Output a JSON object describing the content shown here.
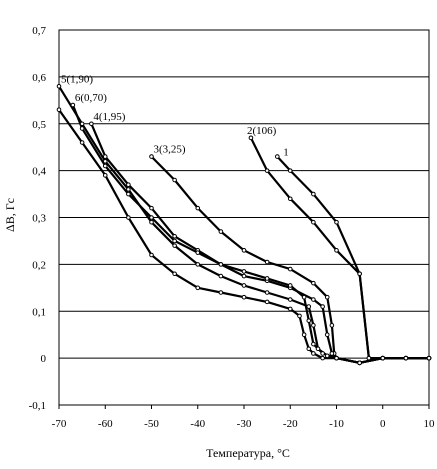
{
  "chart_data": {
    "type": "line",
    "title": "",
    "xlabel": "Температура, °C",
    "ylabel": "ΔB, Гс",
    "xlim": [
      -70,
      10
    ],
    "ylim": [
      -0.1,
      0.7
    ],
    "x_ticks": [
      "-70",
      "-60",
      "-50",
      "-40",
      "-30",
      "-20",
      "-10",
      "0",
      "10"
    ],
    "y_ticks": [
      "-0,1",
      "0",
      "0,1",
      "0,2",
      "0,3",
      "0,4",
      "0,5",
      "0,6",
      "0,7"
    ],
    "grid": "horizontal",
    "series": [
      {
        "name": "1",
        "x": [
          -22.8,
          -20,
          -15,
          -10,
          -5,
          -3,
          0,
          5,
          10
        ],
        "y": [
          0.43,
          0.4,
          0.35,
          0.29,
          0.18,
          0.0,
          0.0,
          0.0,
          0.0
        ]
      },
      {
        "name": "2(106)",
        "x": [
          -28.5,
          -25,
          -20,
          -15,
          -10,
          -5,
          -3,
          0,
          5,
          10
        ],
        "y": [
          0.47,
          0.4,
          0.34,
          0.29,
          0.23,
          0.18,
          0.0,
          0.0,
          0.0,
          0.0
        ]
      },
      {
        "name": "3(3,25)",
        "x": [
          -50,
          -45,
          -40,
          -35,
          -30,
          -25,
          -20,
          -15,
          -12,
          -11,
          -10.5,
          -10,
          -5,
          0,
          5,
          10
        ],
        "y": [
          0.43,
          0.38,
          0.32,
          0.27,
          0.23,
          0.205,
          0.19,
          0.16,
          0.13,
          0.07,
          0.01,
          0.0,
          -0.01,
          0.0,
          0.0,
          0.0
        ]
      },
      {
        "name": "4(1,95)",
        "x": [
          -63,
          -60,
          -55,
          -50,
          -45,
          -40,
          -35,
          -30,
          -25,
          -20,
          -15,
          -13,
          -12,
          -11,
          -10,
          -5,
          0,
          5,
          10
        ],
        "y": [
          0.5,
          0.43,
          0.37,
          0.32,
          0.26,
          0.23,
          0.2,
          0.175,
          0.165,
          0.15,
          0.125,
          0.11,
          0.05,
          0.01,
          0.0,
          -0.01,
          0.0,
          0.0,
          0.0
        ]
      },
      {
        "name": "5(1,90)",
        "x": [
          -70,
          -65,
          -60,
          -55,
          -50,
          -45,
          -40,
          -35,
          -30,
          -25,
          -20,
          -16,
          -15,
          -14,
          -12,
          -10,
          -5,
          0,
          5,
          10
        ],
        "y": [
          0.58,
          0.5,
          0.42,
          0.36,
          0.29,
          0.24,
          0.2,
          0.175,
          0.155,
          0.14,
          0.125,
          0.11,
          0.07,
          0.02,
          0.005,
          0.0,
          -0.01,
          0.0,
          0.0,
          0.0
        ]
      },
      {
        "name": "6(0,70)",
        "x": [
          -67,
          -65,
          -60,
          -55,
          -50,
          -45,
          -40,
          -35,
          -30,
          -25,
          -20,
          -17,
          -16,
          -15,
          -13,
          -10,
          -5,
          0,
          5,
          10
        ],
        "y": [
          0.54,
          0.49,
          0.41,
          0.35,
          0.3,
          0.25,
          0.225,
          0.2,
          0.185,
          0.17,
          0.155,
          0.13,
          0.08,
          0.03,
          0.01,
          0.0,
          -0.01,
          0.0,
          0.0,
          0.0
        ]
      },
      {
        "name": "",
        "x": [
          -70,
          -65,
          -60,
          -55,
          -50,
          -45,
          -40,
          -35,
          -30,
          -25,
          -20,
          -18,
          -17,
          -16,
          -15,
          -13,
          -10,
          -5,
          0,
          5,
          10
        ],
        "y": [
          0.53,
          0.46,
          0.39,
          0.3,
          0.22,
          0.18,
          0.15,
          0.14,
          0.13,
          0.12,
          0.105,
          0.09,
          0.05,
          0.02,
          0.01,
          0.0,
          0.0,
          -0.01,
          0.0,
          0.0,
          0.0
        ]
      }
    ],
    "series_labels": [
      {
        "text": "1",
        "series": 0
      },
      {
        "text": "2(106)",
        "series": 1
      },
      {
        "text": "3(3,25)",
        "series": 2
      },
      {
        "text": "4(1,95)",
        "series": 3
      },
      {
        "text": "5(1,90)",
        "series": 4
      },
      {
        "text": "6(0,70)",
        "series": 5
      }
    ]
  }
}
